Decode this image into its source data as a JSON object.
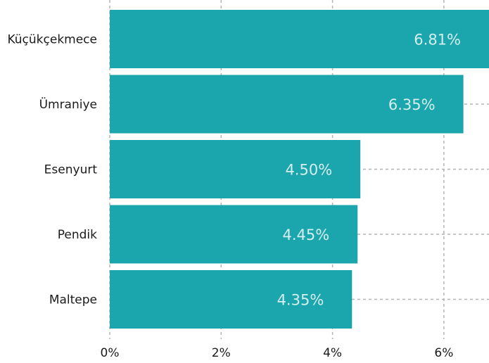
{
  "chart_data": {
    "type": "bar",
    "orientation": "horizontal",
    "categories": [
      "Küçükçekmece",
      "Ümraniye",
      "Esenyurt",
      "Pendik",
      "Maltepe"
    ],
    "values": [
      6.81,
      6.35,
      4.5,
      4.45,
      4.35
    ],
    "value_labels": [
      "6.81%",
      "6.35%",
      "4.50%",
      "4.45%",
      "4.35%"
    ],
    "x_ticks": [
      0,
      2,
      4,
      6
    ],
    "x_tick_labels": [
      "0%",
      "2%",
      "4%",
      "6%"
    ],
    "xlim": [
      0,
      6.81
    ],
    "grid": true,
    "bar_color": "#1aa6ac",
    "label_color": "#d6eeee",
    "grid_color": "#b3b3b3"
  }
}
